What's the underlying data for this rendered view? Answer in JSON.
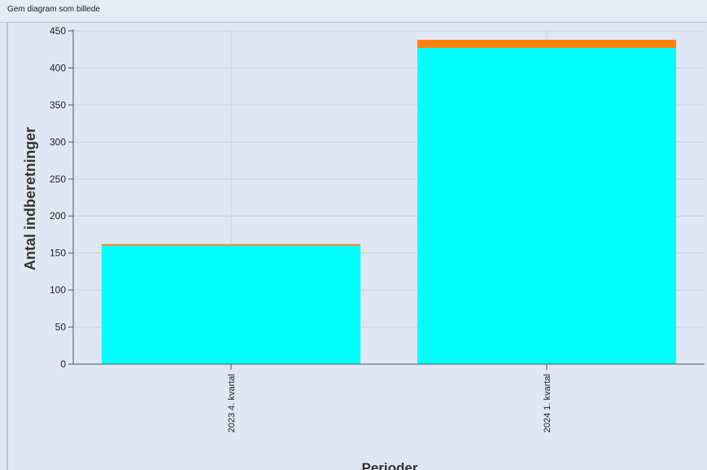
{
  "toolbar": {
    "save_label": "Gem diagram som billede"
  },
  "chart_data": {
    "type": "bar",
    "stacked": true,
    "categories": [
      "2023 4. kvartal",
      "2024 1. kvartal"
    ],
    "series": [
      {
        "values": [
          160,
          427
        ],
        "color": "#00ffff"
      },
      {
        "values": [
          2,
          11
        ],
        "color": "#ff7f0e"
      }
    ],
    "xlabel": "Perioder",
    "ylabel": "Antal indberetninger",
    "ylim": [
      0,
      450
    ],
    "yticks": [
      0,
      50,
      100,
      150,
      200,
      250,
      300,
      350,
      400,
      450
    ],
    "grid": true,
    "legend": "none"
  }
}
